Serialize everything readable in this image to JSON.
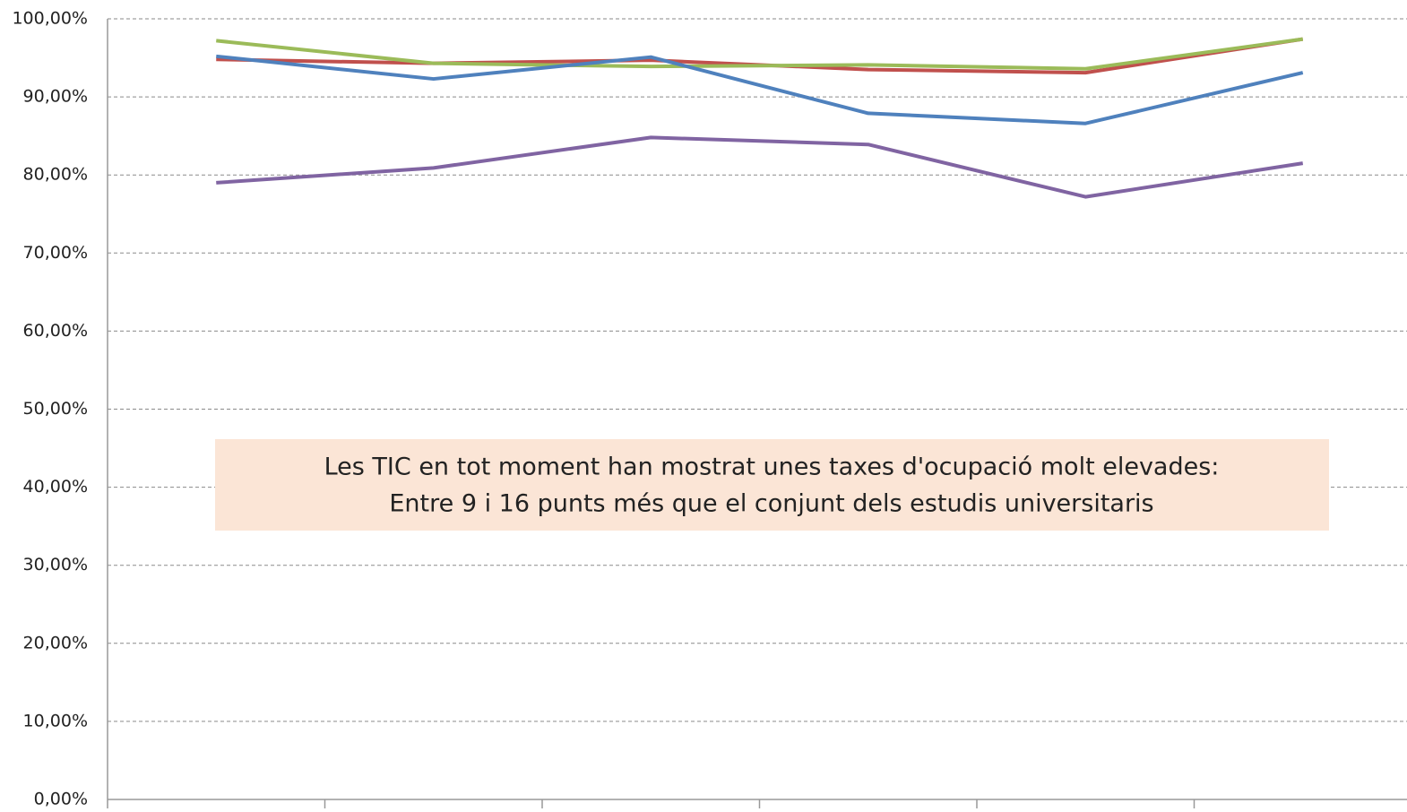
{
  "chart_data": {
    "type": "line",
    "categories": [
      null,
      null,
      null,
      null,
      null,
      null
    ],
    "series": [
      {
        "color": "#c0504d",
        "values": [
          94.8,
          94.3,
          94.7,
          93.5,
          93.1,
          97.4
        ]
      },
      {
        "color": "#9bbb59",
        "values": [
          97.2,
          94.3,
          93.9,
          94.1,
          93.6,
          97.4
        ]
      },
      {
        "color": "#4f81bd",
        "values": [
          95.2,
          92.3,
          95.1,
          87.9,
          86.6,
          93.1
        ]
      },
      {
        "color": "#8064a2",
        "values": [
          79.0,
          80.9,
          84.8,
          83.9,
          77.2,
          81.5
        ]
      }
    ],
    "ylim": [
      0,
      100
    ],
    "yticks": [
      {
        "value": 0,
        "label": "0,00%"
      },
      {
        "value": 10,
        "label": "10,00%"
      },
      {
        "value": 20,
        "label": "20,00%"
      },
      {
        "value": 30,
        "label": "30,00%"
      },
      {
        "value": 40,
        "label": "40,00%"
      },
      {
        "value": 50,
        "label": "50,00%"
      },
      {
        "value": 60,
        "label": "60,00%"
      },
      {
        "value": 70,
        "label": "70,00%"
      },
      {
        "value": 80,
        "label": "80,00%"
      },
      {
        "value": 90,
        "label": "90,00%"
      },
      {
        "value": 100,
        "label": "100,00%"
      }
    ],
    "grid": true,
    "annotation": [
      "Les TIC en tot moment han mostrat unes taxes d'ocupació molt elevades:",
      "Entre 9 i 16 punts més que el conjunt dels estudis universitaris"
    ]
  }
}
